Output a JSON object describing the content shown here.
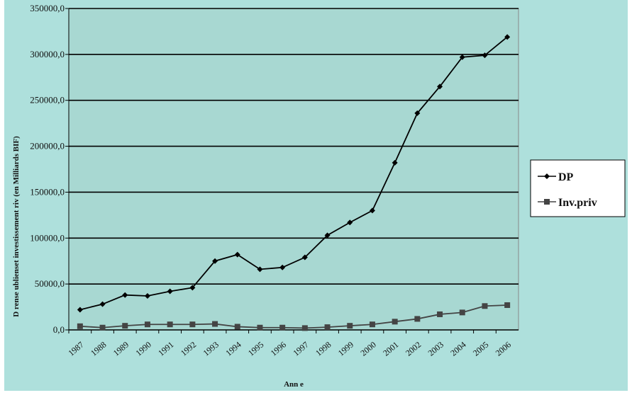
{
  "chart_data": {
    "type": "line",
    "categories": [
      "1987",
      "1988",
      "1989",
      "1990",
      "1991",
      "1992",
      "1993",
      "1994",
      "1995",
      "1996",
      "1997",
      "1998",
      "1999",
      "2000",
      "2001",
      "2002",
      "2003",
      "2004",
      "2005",
      "2006"
    ],
    "series": [
      {
        "name": "DP",
        "marker": "diamond",
        "color": "#000000",
        "values": [
          22000,
          28000,
          38000,
          37000,
          42000,
          46000,
          75000,
          82000,
          66000,
          68000,
          79000,
          103000,
          117000,
          130000,
          182000,
          236000,
          265000,
          297000,
          299000,
          319000
        ]
      },
      {
        "name": "Inv.priv",
        "marker": "square",
        "color": "#444444",
        "values": [
          4000,
          2500,
          4500,
          6000,
          6000,
          6000,
          6500,
          3500,
          2500,
          2500,
          2000,
          3000,
          4500,
          6000,
          9000,
          12000,
          17000,
          19000,
          26000,
          27000
        ]
      }
    ],
    "ylim": [
      0,
      350000
    ],
    "yticks": [
      0,
      50000,
      100000,
      150000,
      200000,
      250000,
      300000,
      350000
    ],
    "ytick_labels": [
      "0,0",
      "50000,0",
      "100000,0",
      "150000,0",
      "200000,0",
      "250000,0",
      "300000,0",
      "350000,0"
    ],
    "xlabel": "Ann e",
    "ylabel": "D rense ublienset investissement riv  (en Milliards BIF)",
    "grid": "horizontal",
    "legend_position": "right",
    "colors": {
      "plot_background": "#aee0dc",
      "outer_background": "#aee0dc",
      "gridline": "#000000"
    }
  }
}
